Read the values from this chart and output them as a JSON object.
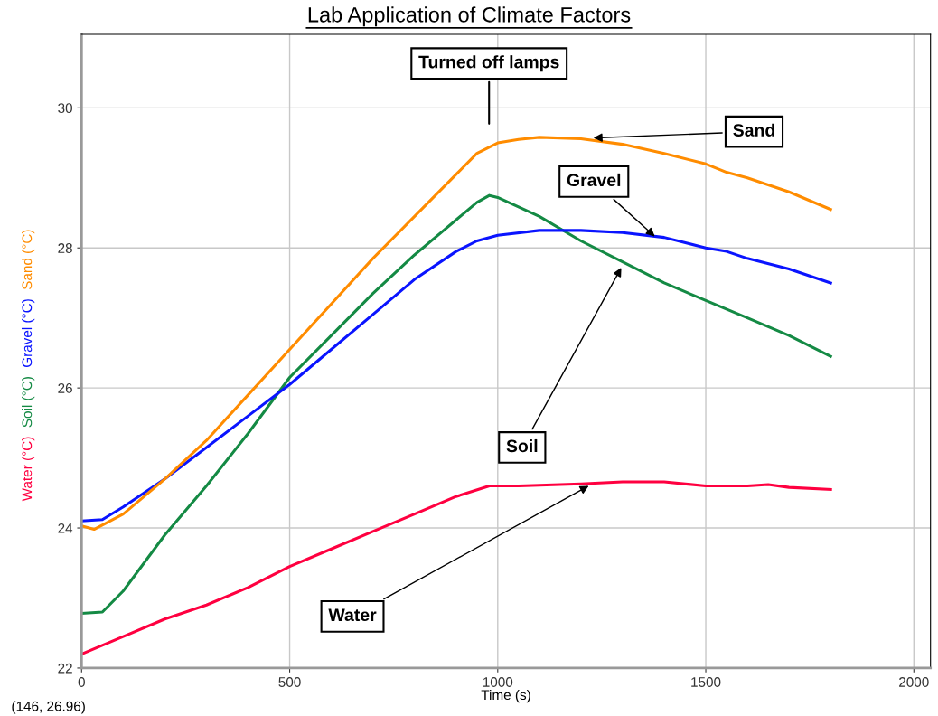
{
  "chart_data": {
    "type": "line",
    "title": "Lab Application of Climate Factors",
    "xlabel": "Time (s)",
    "xlim": [
      0,
      2040
    ],
    "xticks": [
      0,
      500,
      1000,
      1500,
      2000
    ],
    "ylim": [
      22,
      31.05
    ],
    "yticks": [
      22,
      24,
      26,
      28,
      30
    ],
    "grid": true,
    "legend": false,
    "marker": "none",
    "line_style": "solid",
    "series": [
      {
        "name": "Water (°C)",
        "color": "#ff0040",
        "x": [
          0,
          100,
          200,
          300,
          400,
          500,
          600,
          700,
          800,
          900,
          980,
          1050,
          1200,
          1300,
          1400,
          1500,
          1600,
          1650,
          1700,
          1800
        ],
        "values": [
          22.2,
          22.45,
          22.7,
          22.9,
          23.15,
          23.45,
          23.7,
          23.95,
          24.2,
          24.45,
          24.6,
          24.6,
          24.63,
          24.66,
          24.66,
          24.6,
          24.6,
          24.62,
          24.58,
          24.55
        ]
      },
      {
        "name": "Soil (°C)",
        "color": "#148a44",
        "x": [
          0,
          50,
          100,
          200,
          300,
          400,
          500,
          600,
          700,
          800,
          900,
          950,
          980,
          1000,
          1100,
          1200,
          1300,
          1400,
          1500,
          1600,
          1700,
          1800
        ],
        "values": [
          22.78,
          22.8,
          23.1,
          23.9,
          24.6,
          25.35,
          26.15,
          26.75,
          27.35,
          27.9,
          28.4,
          28.65,
          28.75,
          28.72,
          28.45,
          28.1,
          27.8,
          27.5,
          27.25,
          27.0,
          26.75,
          26.45
        ]
      },
      {
        "name": "Gravel (°C)",
        "color": "#0a14ff",
        "x": [
          0,
          50,
          100,
          200,
          300,
          400,
          500,
          600,
          700,
          800,
          900,
          950,
          1000,
          1100,
          1200,
          1300,
          1400,
          1500,
          1550,
          1600,
          1700,
          1800
        ],
        "values": [
          24.1,
          24.12,
          24.3,
          24.7,
          25.15,
          25.6,
          26.05,
          26.55,
          27.05,
          27.55,
          27.95,
          28.1,
          28.18,
          28.25,
          28.25,
          28.22,
          28.15,
          28.0,
          27.95,
          27.85,
          27.7,
          27.5
        ]
      },
      {
        "name": "Sand (°C)",
        "color": "#ff8c00",
        "x": [
          0,
          30,
          100,
          200,
          300,
          400,
          500,
          600,
          700,
          800,
          900,
          950,
          1000,
          1050,
          1100,
          1200,
          1300,
          1400,
          1500,
          1550,
          1600,
          1700,
          1800
        ],
        "values": [
          24.03,
          23.98,
          24.2,
          24.7,
          25.25,
          25.9,
          26.55,
          27.2,
          27.85,
          28.45,
          29.05,
          29.35,
          29.5,
          29.55,
          29.58,
          29.56,
          29.48,
          29.35,
          29.2,
          29.08,
          29.0,
          28.8,
          28.55
        ]
      }
    ],
    "annotations": [
      "Turned off lamps",
      {
        "text": "Sand",
        "x": 1224,
        "y": 29.57
      },
      {
        "text": "Gravel",
        "x": 1382,
        "y": 28.14
      },
      {
        "text": "Soil",
        "x": 1300,
        "y": 27.75
      },
      {
        "text": "Water",
        "x": 1224,
        "y": 24.62
      },
      "(146, 26.96)"
    ]
  }
}
